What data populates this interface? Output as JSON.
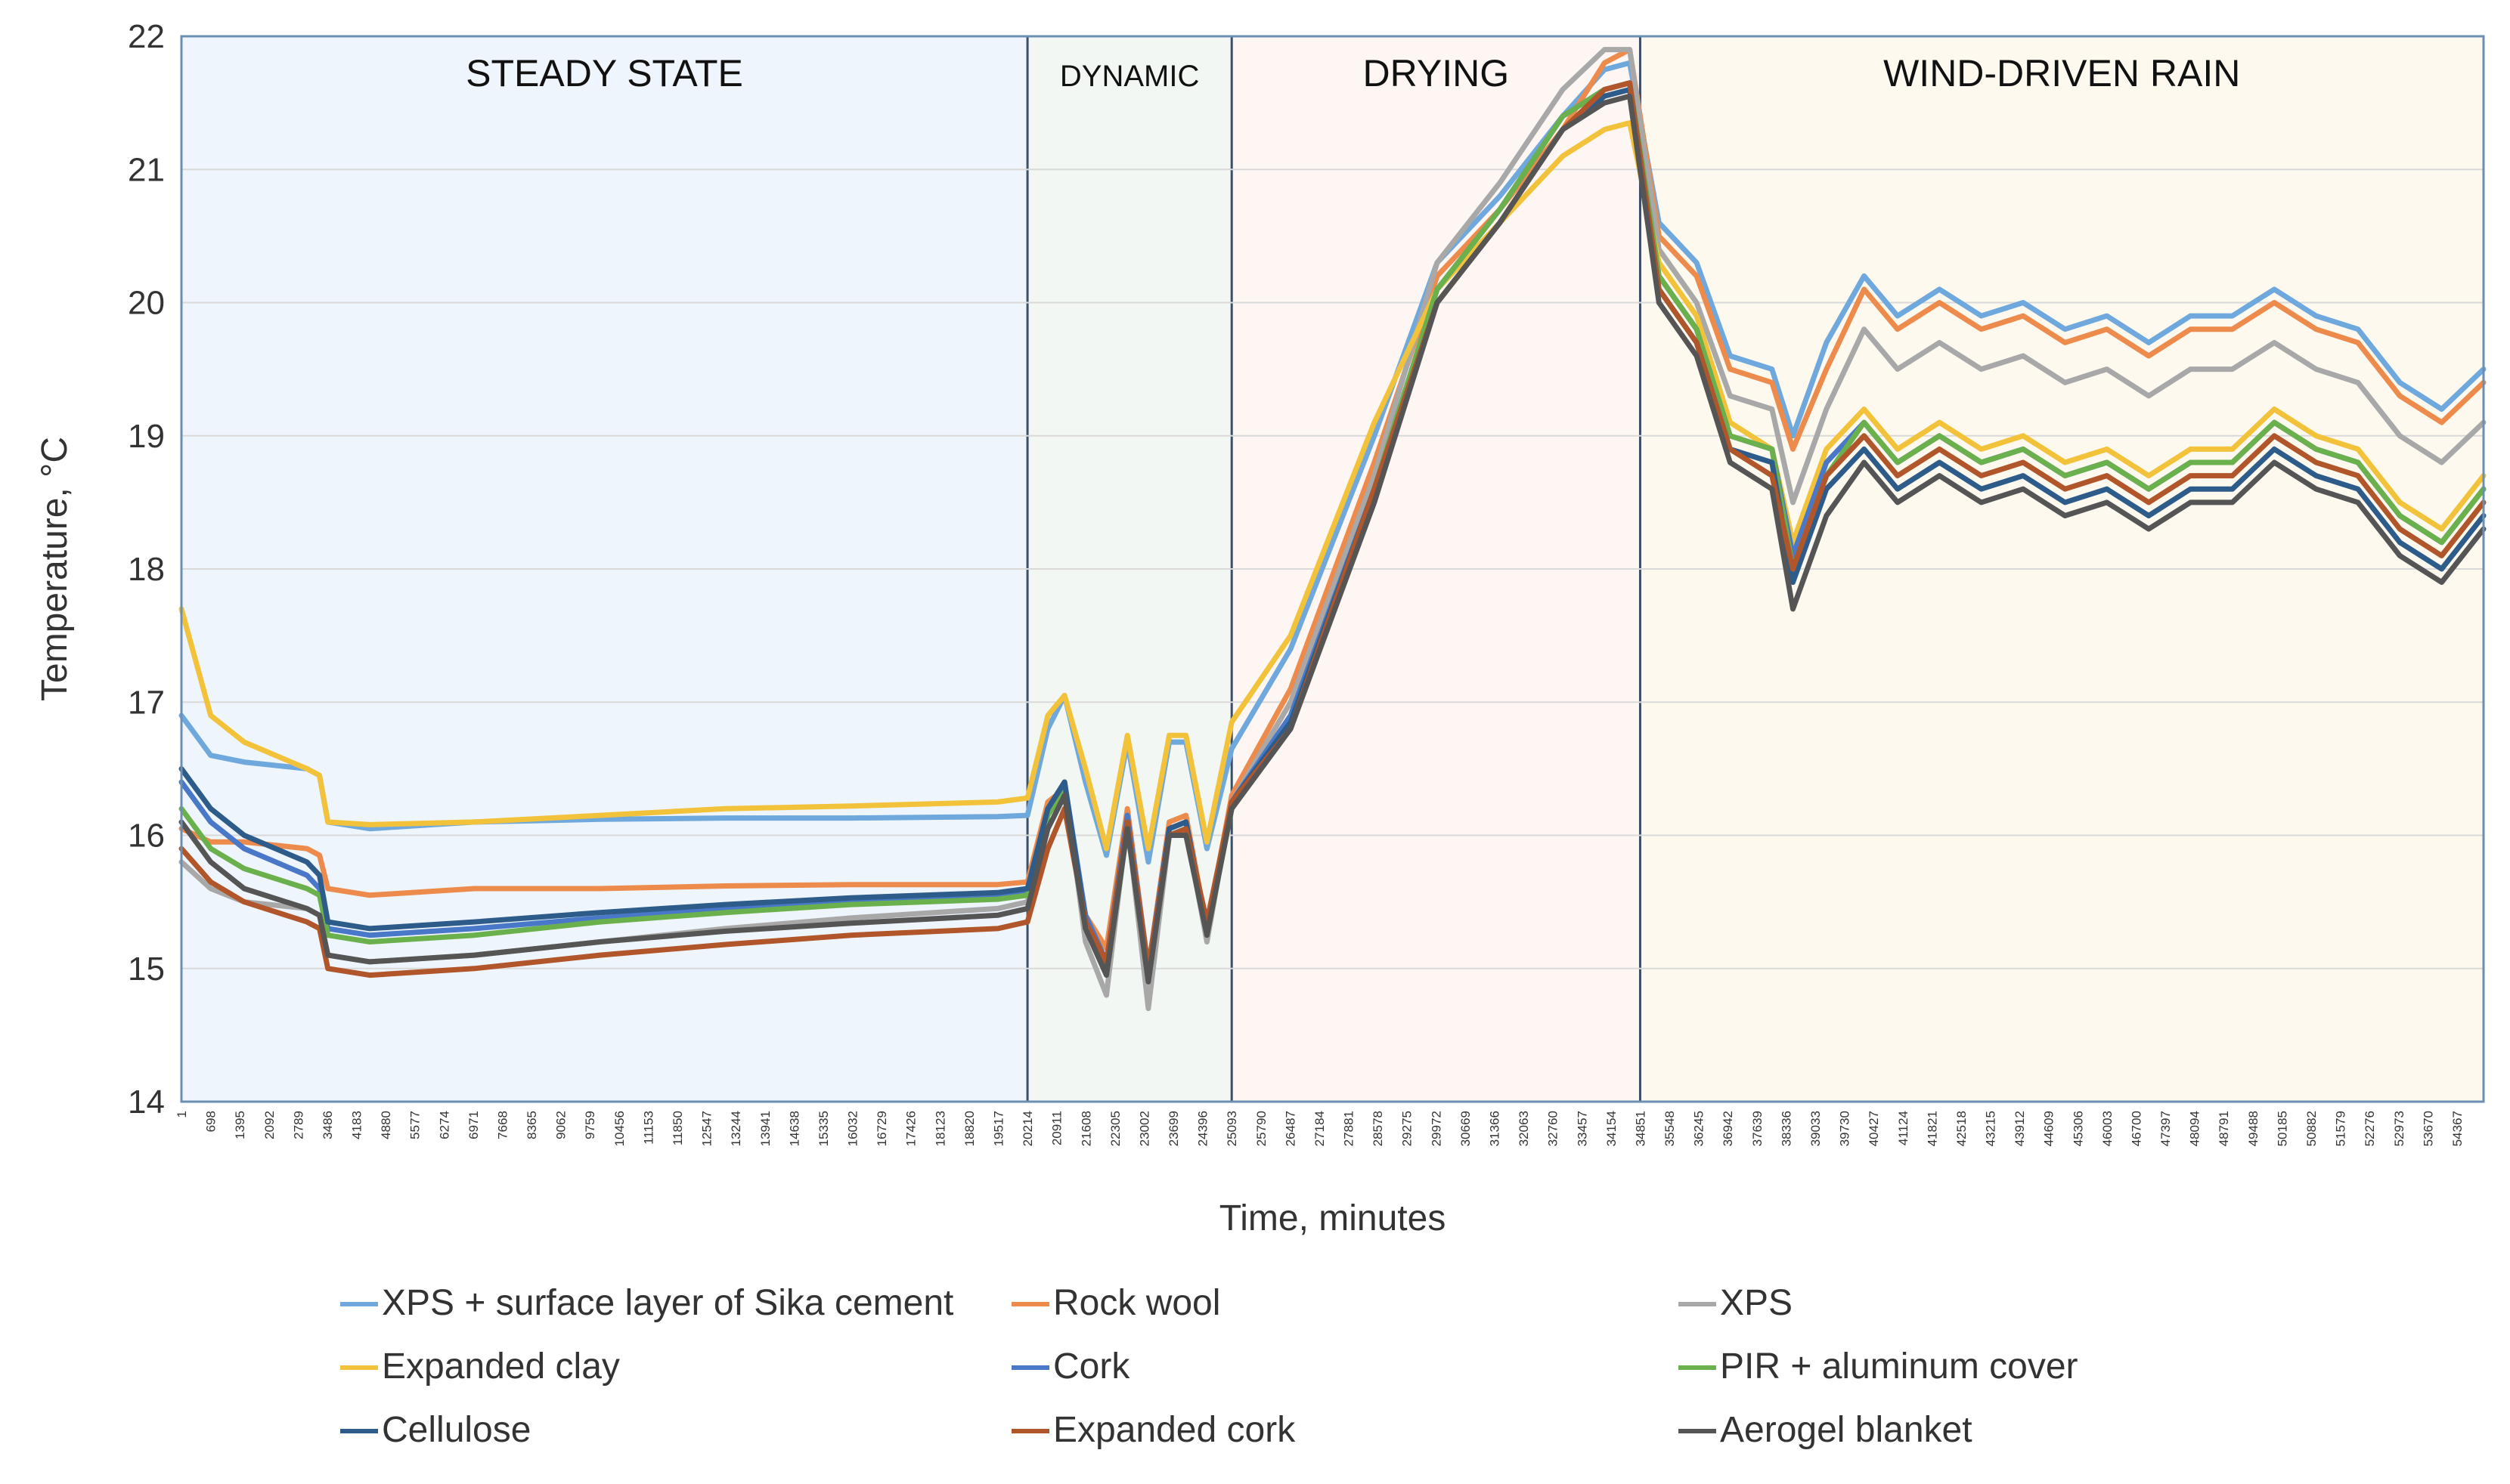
{
  "chart_data": {
    "type": "line",
    "xlabel": "Time, minutes",
    "ylabel": "Temperature, °C",
    "ylim": [
      14,
      22
    ],
    "yticks": [
      14,
      15,
      16,
      17,
      18,
      19,
      20,
      21,
      22
    ],
    "xlim": [
      1,
      55000
    ],
    "xticks": [
      "1",
      "698",
      "1395",
      "2092",
      "2789",
      "3486",
      "4183",
      "4880",
      "5577",
      "6274",
      "6971",
      "7668",
      "8365",
      "9062",
      "9759",
      "10456",
      "11153",
      "11850",
      "12547",
      "13244",
      "13941",
      "14638",
      "15335",
      "16032",
      "16729",
      "17426",
      "18123",
      "18820",
      "19517",
      "20214",
      "20911",
      "21608",
      "22305",
      "23002",
      "23699",
      "24396",
      "25093",
      "25790",
      "26487",
      "27184",
      "27881",
      "28578",
      "29275",
      "29972",
      "30669",
      "31366",
      "32063",
      "32760",
      "33457",
      "34154",
      "34851",
      "35548",
      "36245",
      "36942",
      "37639",
      "38336",
      "39033",
      "39730",
      "40427",
      "41124",
      "41821",
      "42518",
      "43215",
      "43912",
      "44609",
      "45306",
      "46003",
      "46700",
      "47397",
      "48094",
      "48791",
      "49488",
      "50185",
      "50882",
      "51579",
      "52276",
      "52973",
      "53670",
      "54367"
    ],
    "phases": [
      {
        "label": "STEADY STATE",
        "start": 1,
        "end": 20214,
        "color": "#eef5fc"
      },
      {
        "label": "DYNAMIC",
        "start": 20214,
        "end": 25093,
        "color": "#f2f7f4"
      },
      {
        "label": "DRYING",
        "start": 25093,
        "end": 34851,
        "color": "#fdf6f2"
      },
      {
        "label": "WIND-DRIVEN RAIN",
        "start": 34851,
        "end": 55000,
        "color": "#fdf9ef"
      }
    ],
    "x": [
      1,
      700,
      1500,
      3000,
      3300,
      3500,
      4500,
      7000,
      10000,
      13000,
      16000,
      19500,
      20214,
      20700,
      21100,
      21600,
      22100,
      22600,
      23100,
      23600,
      24000,
      24500,
      25093,
      26500,
      28500,
      30000,
      31500,
      33000,
      34000,
      34600,
      35300,
      36200,
      37000,
      38000,
      38500,
      39300,
      40200,
      41000,
      42000,
      43000,
      44000,
      45000,
      46000,
      47000,
      48000,
      49000,
      50000,
      51000,
      52000,
      53000,
      54000,
      55000
    ],
    "series": [
      {
        "name": "XPS + surface layer of Sika cement",
        "color": "#6fa8dc",
        "values": [
          16.9,
          16.6,
          16.55,
          16.5,
          16.45,
          16.1,
          16.05,
          16.1,
          16.12,
          16.13,
          16.13,
          16.14,
          16.15,
          16.8,
          17.05,
          16.4,
          15.85,
          16.7,
          15.8,
          16.7,
          16.7,
          15.9,
          16.65,
          17.4,
          19.0,
          20.3,
          20.8,
          21.4,
          21.75,
          21.8,
          20.6,
          20.3,
          19.6,
          19.5,
          19.0,
          19.7,
          20.2,
          19.9,
          20.1,
          19.9,
          20.0,
          19.8,
          19.9,
          19.7,
          19.9,
          19.9,
          20.1,
          19.9,
          19.8,
          19.4,
          19.2,
          19.5
        ]
      },
      {
        "name": "Rock wool",
        "color": "#ed8b4c",
        "values": [
          16.05,
          15.95,
          15.95,
          15.9,
          15.85,
          15.6,
          15.55,
          15.6,
          15.6,
          15.62,
          15.63,
          15.63,
          15.65,
          16.25,
          16.35,
          15.4,
          15.15,
          16.2,
          15.0,
          16.1,
          16.15,
          15.3,
          16.3,
          17.1,
          18.8,
          20.2,
          20.7,
          21.3,
          21.8,
          21.9,
          20.5,
          20.2,
          19.5,
          19.4,
          18.9,
          19.5,
          20.1,
          19.8,
          20.0,
          19.8,
          19.9,
          19.7,
          19.8,
          19.6,
          19.8,
          19.8,
          20.0,
          19.8,
          19.7,
          19.3,
          19.1,
          19.4
        ]
      },
      {
        "name": "XPS",
        "color": "#a8a8a8",
        "values": [
          15.8,
          15.6,
          15.5,
          15.45,
          15.4,
          15.1,
          15.05,
          15.1,
          15.2,
          15.3,
          15.38,
          15.45,
          15.5,
          16.2,
          16.4,
          15.2,
          14.8,
          16.1,
          14.7,
          16.0,
          16.05,
          15.2,
          16.25,
          17.0,
          18.7,
          20.3,
          20.9,
          21.6,
          21.9,
          21.9,
          20.4,
          20.0,
          19.3,
          19.2,
          18.5,
          19.2,
          19.8,
          19.5,
          19.7,
          19.5,
          19.6,
          19.4,
          19.5,
          19.3,
          19.5,
          19.5,
          19.7,
          19.5,
          19.4,
          19.0,
          18.8,
          19.1
        ]
      },
      {
        "name": "Expanded clay",
        "color": "#f3c23b",
        "values": [
          17.7,
          16.9,
          16.7,
          16.5,
          16.45,
          16.1,
          16.08,
          16.1,
          16.15,
          16.2,
          16.22,
          16.25,
          16.28,
          16.9,
          17.05,
          16.5,
          15.9,
          16.75,
          15.9,
          16.75,
          16.75,
          15.95,
          16.85,
          17.5,
          19.1,
          20.1,
          20.6,
          21.1,
          21.3,
          21.35,
          20.3,
          19.9,
          19.1,
          18.9,
          18.2,
          18.9,
          19.2,
          18.9,
          19.1,
          18.9,
          19.0,
          18.8,
          18.9,
          18.7,
          18.9,
          18.9,
          19.2,
          19.0,
          18.9,
          18.5,
          18.3,
          18.7
        ]
      },
      {
        "name": "Cork",
        "color": "#4a78c8",
        "values": [
          16.4,
          16.1,
          15.9,
          15.7,
          15.6,
          15.3,
          15.25,
          15.3,
          15.38,
          15.45,
          15.5,
          15.55,
          15.58,
          16.2,
          16.4,
          15.4,
          15.05,
          16.15,
          15.0,
          16.05,
          16.1,
          15.3,
          16.25,
          16.9,
          18.6,
          20.1,
          20.7,
          21.4,
          21.6,
          21.65,
          20.2,
          19.8,
          19.0,
          18.9,
          18.1,
          18.8,
          19.1,
          18.8,
          19.0,
          18.8,
          18.9,
          18.7,
          18.8,
          18.6,
          18.8,
          18.8,
          19.1,
          18.9,
          18.8,
          18.4,
          18.2,
          18.6
        ]
      },
      {
        "name": "PIR + aluminum cover",
        "color": "#6ab04c",
        "values": [
          16.2,
          15.9,
          15.75,
          15.6,
          15.55,
          15.25,
          15.2,
          15.25,
          15.35,
          15.42,
          15.48,
          15.52,
          15.55,
          16.15,
          16.35,
          15.35,
          15.0,
          16.1,
          14.95,
          16.0,
          16.05,
          15.25,
          16.2,
          16.85,
          18.6,
          20.1,
          20.7,
          21.4,
          21.6,
          21.65,
          20.2,
          19.8,
          19.0,
          18.9,
          18.0,
          18.7,
          19.1,
          18.8,
          19.0,
          18.8,
          18.9,
          18.7,
          18.8,
          18.6,
          18.8,
          18.8,
          19.1,
          18.9,
          18.8,
          18.4,
          18.2,
          18.6
        ]
      },
      {
        "name": "Cellulose",
        "color": "#2e5c8a",
        "values": [
          16.5,
          16.2,
          16.0,
          15.8,
          15.7,
          15.35,
          15.3,
          15.35,
          15.42,
          15.48,
          15.53,
          15.57,
          15.6,
          16.2,
          16.4,
          15.35,
          15.0,
          16.1,
          14.95,
          16.05,
          16.1,
          15.3,
          16.25,
          16.85,
          18.6,
          20.0,
          20.6,
          21.3,
          21.55,
          21.6,
          20.1,
          19.7,
          18.9,
          18.8,
          17.9,
          18.6,
          18.9,
          18.6,
          18.8,
          18.6,
          18.7,
          18.5,
          18.6,
          18.4,
          18.6,
          18.6,
          18.9,
          18.7,
          18.6,
          18.2,
          18.0,
          18.4
        ]
      },
      {
        "name": "Expanded cork",
        "color": "#b0562a",
        "values": [
          15.9,
          15.65,
          15.5,
          15.35,
          15.3,
          15.0,
          14.95,
          15.0,
          15.1,
          15.18,
          15.25,
          15.3,
          15.35,
          15.9,
          16.2,
          15.35,
          15.05,
          16.1,
          15.0,
          16.0,
          16.05,
          15.35,
          16.25,
          16.8,
          18.6,
          20.0,
          20.6,
          21.3,
          21.6,
          21.65,
          20.1,
          19.7,
          18.9,
          18.7,
          18.0,
          18.7,
          19.0,
          18.7,
          18.9,
          18.7,
          18.8,
          18.6,
          18.7,
          18.5,
          18.7,
          18.7,
          19.0,
          18.8,
          18.7,
          18.3,
          18.1,
          18.5
        ]
      },
      {
        "name": "Aerogel blanket",
        "color": "#555555",
        "values": [
          16.1,
          15.8,
          15.6,
          15.45,
          15.4,
          15.1,
          15.05,
          15.1,
          15.2,
          15.28,
          15.34,
          15.4,
          15.45,
          16.05,
          16.3,
          15.3,
          14.95,
          16.05,
          14.9,
          16.0,
          16.0,
          15.25,
          16.2,
          16.8,
          18.5,
          20.0,
          20.6,
          21.3,
          21.5,
          21.55,
          20.0,
          19.6,
          18.8,
          18.6,
          17.7,
          18.4,
          18.8,
          18.5,
          18.7,
          18.5,
          18.6,
          18.4,
          18.5,
          18.3,
          18.5,
          18.5,
          18.8,
          18.6,
          18.5,
          18.1,
          17.9,
          18.3
        ]
      }
    ]
  }
}
